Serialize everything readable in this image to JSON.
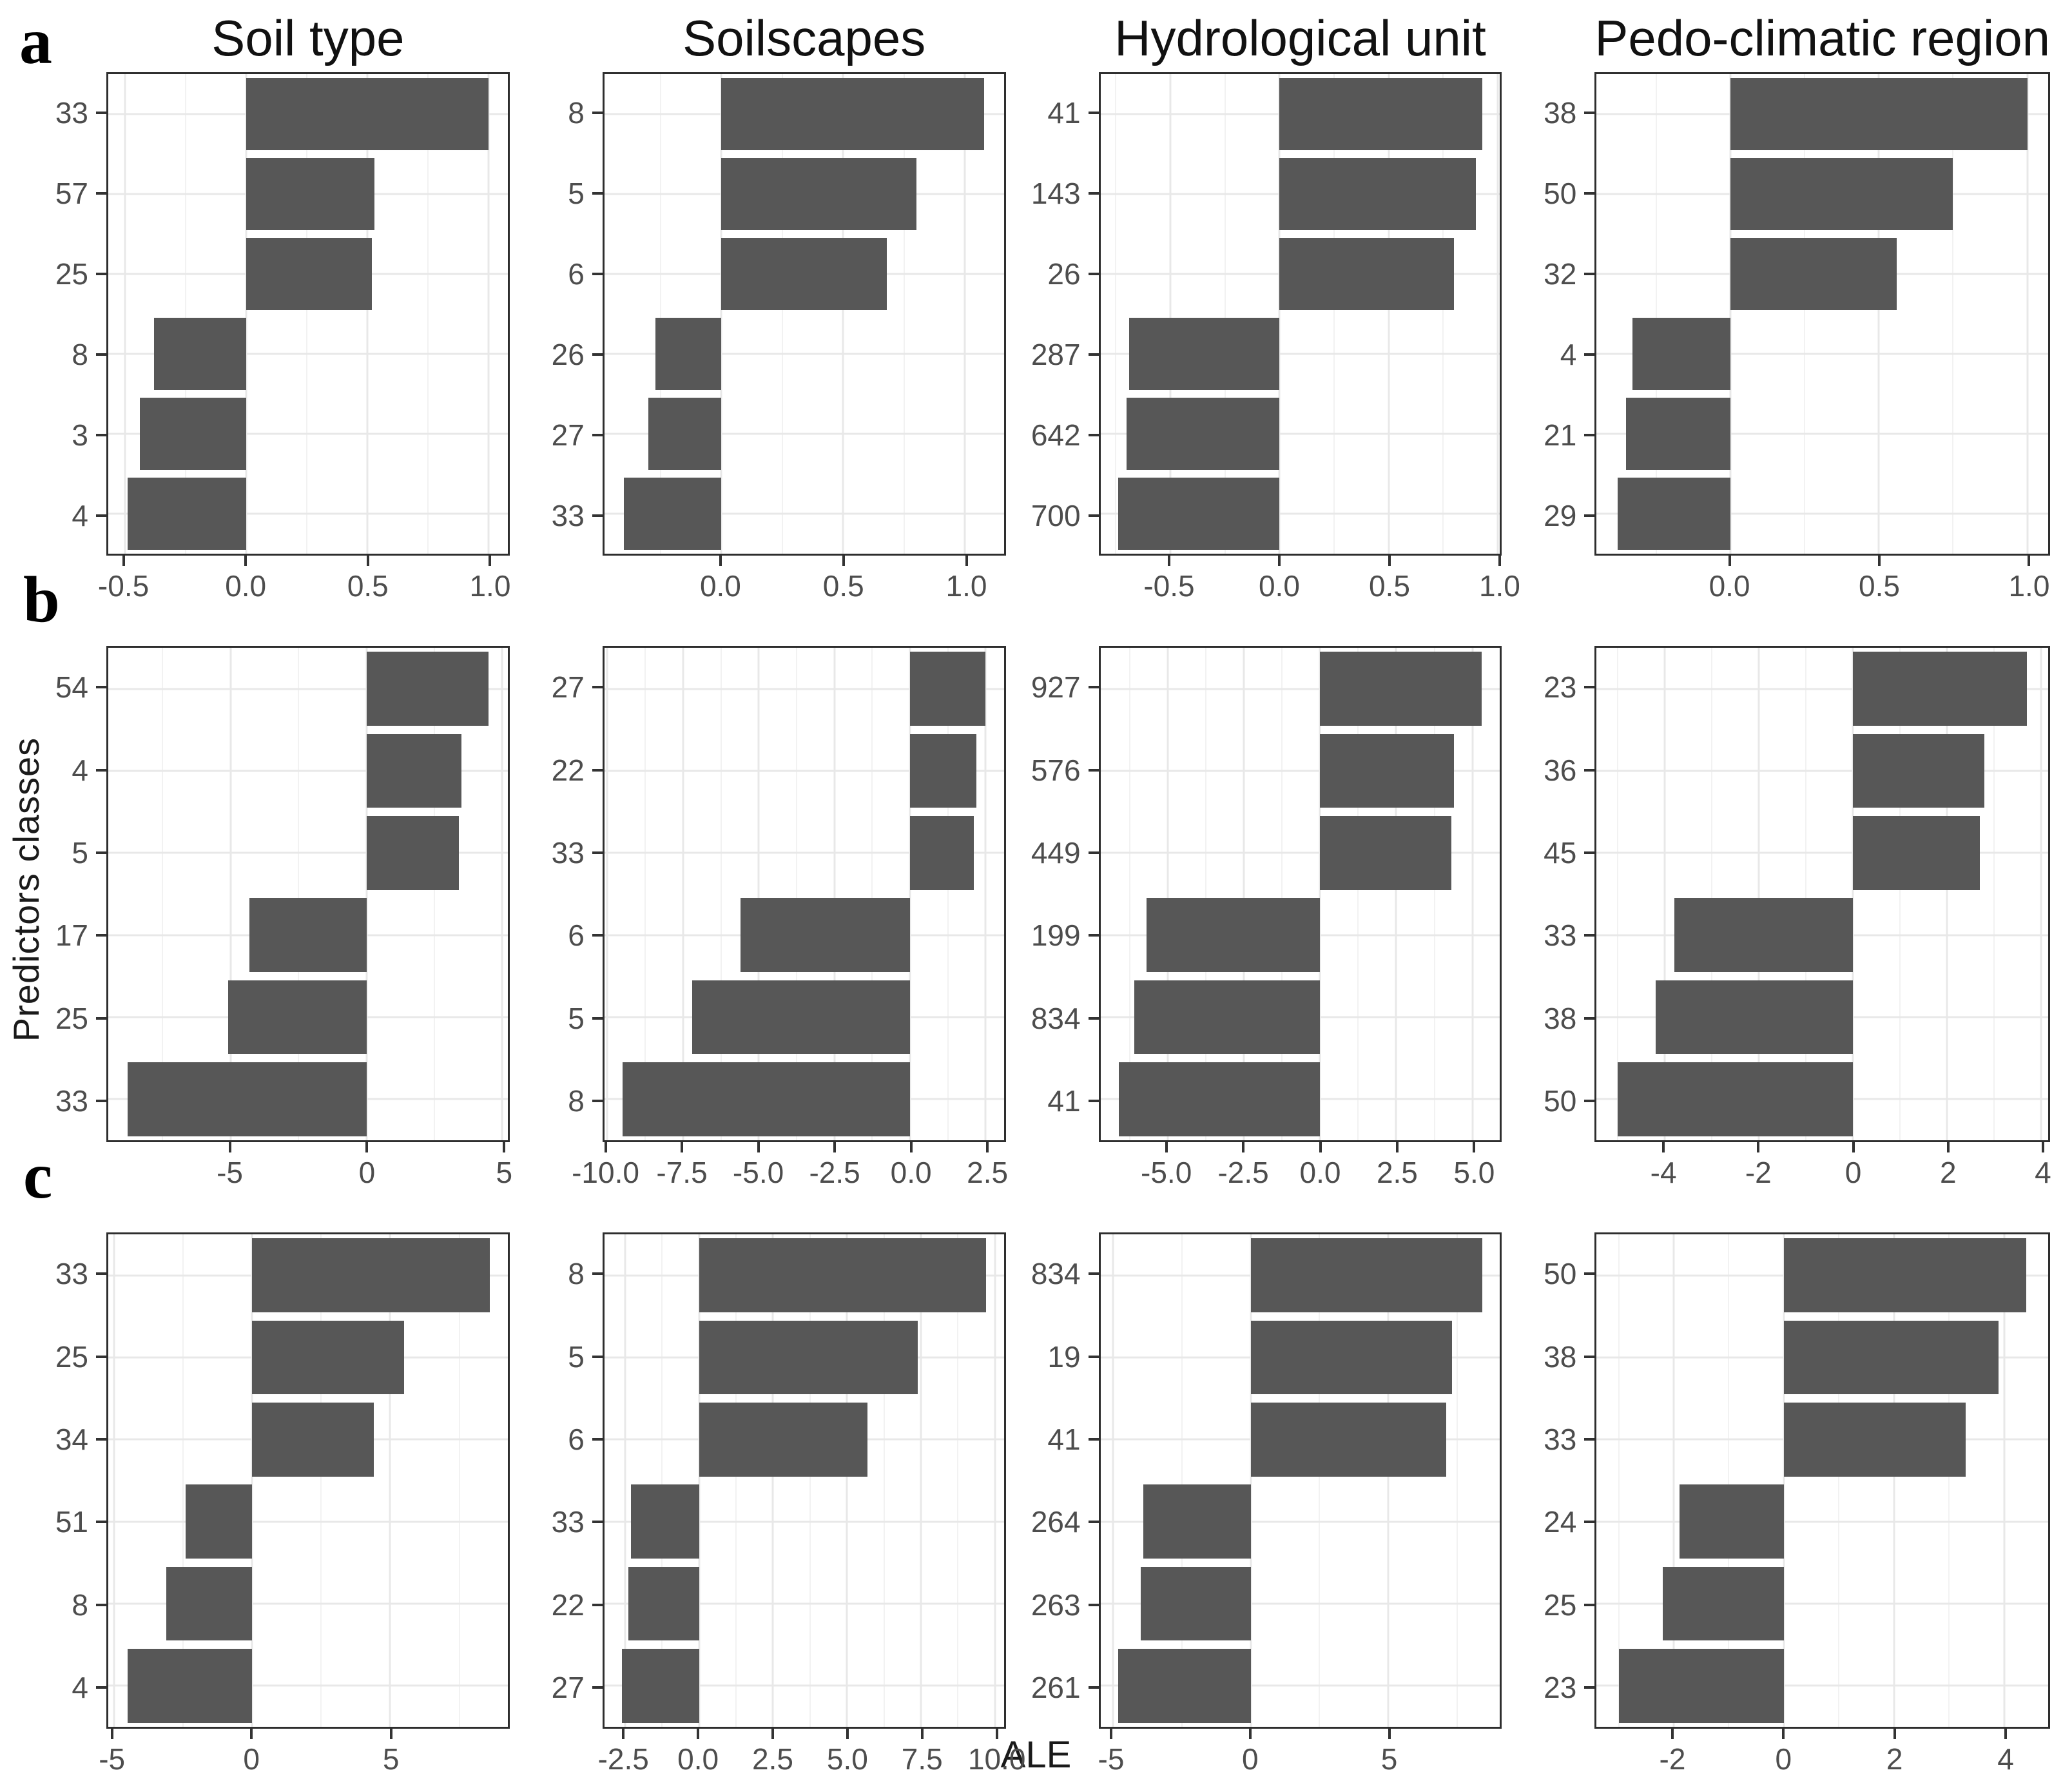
{
  "figure": {
    "xlabel": "ALE",
    "ylabel": "Predictors classes",
    "row_labels": [
      "a",
      "b",
      "c"
    ],
    "col_titles": [
      "Soil type",
      "Soilscapes",
      "Hydrological unit",
      "Pedo-climatic region"
    ],
    "colors": {
      "bar": "#575757",
      "grid_major": "#e8e8e8",
      "grid_minor": "#f2f2f2",
      "panel_border": "#2e2e2e",
      "tick_mark": "#333333",
      "axis_text": "#4d4d4d",
      "title_text": "#111111"
    }
  },
  "chart_data": [
    {
      "id": "a1",
      "row": "a",
      "title": "Soil type",
      "type": "bar",
      "orientation": "horizontal",
      "categories": [
        "33",
        "57",
        "25",
        "8",
        "3",
        "4"
      ],
      "values": [
        1.0,
        0.53,
        0.52,
        -0.38,
        -0.44,
        -0.49
      ],
      "xticks": [
        -0.5,
        0.0,
        0.5,
        1.0
      ],
      "xtick_labels": [
        "-0.5",
        "0.0",
        "0.5",
        "1.0"
      ],
      "xlim": [
        -0.57,
        1.08
      ],
      "grid": true
    },
    {
      "id": "a2",
      "row": "a",
      "title": "Soilscapes",
      "type": "bar",
      "orientation": "horizontal",
      "categories": [
        "8",
        "5",
        "6",
        "26",
        "27",
        "33"
      ],
      "values": [
        1.08,
        0.8,
        0.68,
        -0.27,
        -0.3,
        -0.4
      ],
      "xticks": [
        0.0,
        0.5,
        1.0
      ],
      "xtick_labels": [
        "0.0",
        "0.5",
        "1.0"
      ],
      "xlim": [
        -0.48,
        1.16
      ],
      "grid": true
    },
    {
      "id": "a3",
      "row": "a",
      "title": "Hydrological unit",
      "type": "bar",
      "orientation": "horizontal",
      "categories": [
        "41",
        "143",
        "26",
        "287",
        "642",
        "700"
      ],
      "values": [
        0.93,
        0.9,
        0.8,
        -0.69,
        -0.7,
        -0.74
      ],
      "xticks": [
        -0.5,
        0.0,
        0.5,
        1.0
      ],
      "xtick_labels": [
        "-0.5",
        "0.0",
        "0.5",
        "1.0"
      ],
      "xlim": [
        -0.82,
        1.01
      ],
      "grid": true
    },
    {
      "id": "a4",
      "row": "a",
      "title": "Pedo-climatic region",
      "type": "bar",
      "orientation": "horizontal",
      "categories": [
        "38",
        "50",
        "32",
        "4",
        "21",
        "29"
      ],
      "values": [
        1.0,
        0.75,
        0.56,
        -0.33,
        -0.35,
        -0.38
      ],
      "xticks": [
        0.0,
        0.5,
        1.0
      ],
      "xtick_labels": [
        "0.0",
        "0.5",
        "1.0"
      ],
      "xlim": [
        -0.45,
        1.07
      ],
      "grid": true
    },
    {
      "id": "b1",
      "row": "b",
      "title": "Soil type",
      "type": "bar",
      "orientation": "horizontal",
      "categories": [
        "54",
        "4",
        "5",
        "17",
        "25",
        "33"
      ],
      "values": [
        4.5,
        3.5,
        3.4,
        -4.3,
        -5.1,
        -8.8
      ],
      "xticks": [
        -5,
        0,
        5
      ],
      "xtick_labels": [
        "-5",
        "0",
        "5"
      ],
      "xlim": [
        -9.5,
        5.2
      ],
      "grid": true
    },
    {
      "id": "b2",
      "row": "b",
      "title": "Soilscapes",
      "type": "bar",
      "orientation": "horizontal",
      "categories": [
        "27",
        "22",
        "33",
        "6",
        "5",
        "8"
      ],
      "values": [
        2.5,
        2.2,
        2.1,
        -5.6,
        -7.2,
        -9.5
      ],
      "xticks": [
        -10.0,
        -7.5,
        -5.0,
        -2.5,
        0.0,
        2.5
      ],
      "xtick_labels": [
        "-10.0",
        "-7.5",
        "-5.0",
        "-2.5",
        "0.0",
        "2.5"
      ],
      "xlim": [
        -10.1,
        3.1
      ],
      "grid": true
    },
    {
      "id": "b3",
      "row": "b",
      "title": "Hydrological unit",
      "type": "bar",
      "orientation": "horizontal",
      "categories": [
        "927",
        "576",
        "449",
        "199",
        "834",
        "41"
      ],
      "values": [
        5.3,
        4.4,
        4.3,
        -5.7,
        -6.1,
        -6.6
      ],
      "xticks": [
        -5.0,
        -2.5,
        0.0,
        2.5,
        5.0
      ],
      "xtick_labels": [
        "-5.0",
        "-2.5",
        "0.0",
        "2.5",
        "5.0"
      ],
      "xlim": [
        -7.2,
        5.9
      ],
      "grid": true
    },
    {
      "id": "b4",
      "row": "b",
      "title": "Pedo-climatic region",
      "type": "bar",
      "orientation": "horizontal",
      "categories": [
        "23",
        "36",
        "45",
        "33",
        "38",
        "50"
      ],
      "values": [
        3.7,
        2.8,
        2.7,
        -3.8,
        -4.2,
        -5.0
      ],
      "xticks": [
        -4,
        -2,
        0,
        2,
        4
      ],
      "xtick_labels": [
        "-4",
        "-2",
        "0",
        "2",
        "4"
      ],
      "xlim": [
        -5.45,
        4.15
      ],
      "grid": true
    },
    {
      "id": "c1",
      "row": "c",
      "title": "Soil type",
      "type": "bar",
      "orientation": "horizontal",
      "categories": [
        "33",
        "25",
        "34",
        "51",
        "8",
        "4"
      ],
      "values": [
        8.6,
        5.5,
        4.4,
        -2.4,
        -3.1,
        -4.5
      ],
      "xticks": [
        -5,
        0,
        5
      ],
      "xtick_labels": [
        "-5",
        "0",
        "5"
      ],
      "xlim": [
        -5.2,
        9.25
      ],
      "grid": true
    },
    {
      "id": "c2",
      "row": "c",
      "title": "Soilscapes",
      "type": "bar",
      "orientation": "horizontal",
      "categories": [
        "8",
        "5",
        "6",
        "33",
        "22",
        "27"
      ],
      "values": [
        9.7,
        7.4,
        5.7,
        -2.3,
        -2.4,
        -2.6
      ],
      "xticks": [
        -2.5,
        0.0,
        2.5,
        5.0,
        7.5,
        10.0
      ],
      "xtick_labels": [
        "-2.5",
        "0.0",
        "2.5",
        "5.0",
        "7.5",
        "10.0"
      ],
      "xlim": [
        -3.2,
        10.3
      ],
      "grid": true
    },
    {
      "id": "c3",
      "row": "c",
      "title": "Hydrological unit",
      "type": "bar",
      "orientation": "horizontal",
      "categories": [
        "834",
        "19",
        "41",
        "264",
        "263",
        "261"
      ],
      "values": [
        8.4,
        7.3,
        7.1,
        -3.9,
        -4.0,
        -4.8
      ],
      "xticks": [
        -5,
        0,
        5
      ],
      "xtick_labels": [
        "-5",
        "0",
        "5"
      ],
      "xlim": [
        -5.45,
        9.05
      ],
      "grid": true
    },
    {
      "id": "c4",
      "row": "c",
      "title": "Pedo-climatic region",
      "type": "bar",
      "orientation": "horizontal",
      "categories": [
        "50",
        "38",
        "33",
        "24",
        "25",
        "23"
      ],
      "values": [
        4.4,
        3.9,
        3.3,
        -1.9,
        -2.2,
        -3.0
      ],
      "xticks": [
        -2,
        0,
        2,
        4
      ],
      "xtick_labels": [
        "-2",
        "0",
        "2",
        "4"
      ],
      "xlim": [
        -3.4,
        4.8
      ],
      "grid": true
    }
  ]
}
